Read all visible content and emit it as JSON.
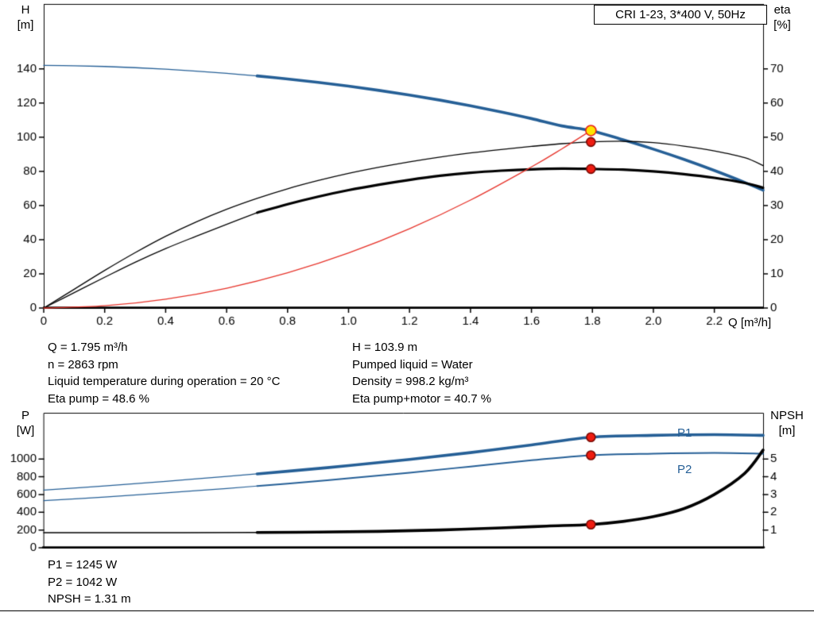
{
  "title_box": "CRI 1-23, 3*400 V, 50Hz",
  "labels": {
    "h_axis": [
      "H",
      "[m]"
    ],
    "eta_axis": [
      "eta",
      "[%]"
    ],
    "q_axis": "Q [m³/h]",
    "p_axis": [
      "P",
      "[W]"
    ],
    "npsh_axis": [
      "NPSH",
      "[m]"
    ],
    "p1_curve": "P1",
    "p2_curve": "P2"
  },
  "info": {
    "top_left": [
      "Q = 1.795 m³/h",
      "n = 2863 rpm",
      "Liquid temperature during operation = 20 °C",
      "Eta pump = 48.6 %"
    ],
    "top_right": [
      "H = 103.9 m",
      "Pumped liquid = Water",
      "Density = 998.2 kg/m³",
      "Eta pump+motor = 40.7 %"
    ],
    "bottom": [
      "P1 = 1245 W",
      "P2 = 1042 W",
      "NPSH = 1.31 m"
    ]
  },
  "colors": {
    "curve_blue": "#255f96",
    "curve_black": "#000000",
    "curve_red": "#e63229",
    "marker_yellow": "#ffe400",
    "marker_red": "#ee1c11",
    "axis": "#000000"
  },
  "chart_data": [
    {
      "type": "line",
      "title": "CRI 1-23, 3*400 V, 50Hz",
      "xlabel": "Q [m³/h]",
      "xlim": [
        0,
        2.36
      ],
      "x_ticks": [
        0,
        0.2,
        0.4,
        0.6,
        0.8,
        1.0,
        1.2,
        1.4,
        1.6,
        1.8,
        2.0,
        2.2
      ],
      "left_axis": {
        "label": "H [m]",
        "lim": [
          0,
          178
        ],
        "ticks": [
          0,
          20,
          40,
          60,
          80,
          100,
          120,
          140
        ]
      },
      "right_axis": {
        "label": "eta [%]",
        "lim": [
          0,
          89
        ],
        "ticks": [
          0,
          10,
          20,
          30,
          40,
          50,
          60,
          70
        ]
      },
      "grid": false,
      "series": [
        {
          "name": "pump-curve-H(Q)",
          "axis": "left",
          "color": "#255f96",
          "segments": [
            [
              0,
              0.7,
              1.3
            ],
            [
              0.7,
              2.36,
              3.6
            ]
          ],
          "points": [
            [
              0,
              142
            ],
            [
              0.1,
              141.8
            ],
            [
              0.2,
              141.4
            ],
            [
              0.3,
              140.7
            ],
            [
              0.4,
              139.8
            ],
            [
              0.5,
              138.7
            ],
            [
              0.6,
              137.4
            ],
            [
              0.7,
              135.9
            ],
            [
              0.8,
              134.1
            ],
            [
              0.9,
              132.1
            ],
            [
              1.0,
              129.9
            ],
            [
              1.1,
              127.4
            ],
            [
              1.2,
              124.7
            ],
            [
              1.3,
              121.7
            ],
            [
              1.4,
              118.4
            ],
            [
              1.5,
              114.8
            ],
            [
              1.6,
              110.9
            ],
            [
              1.7,
              106.6
            ],
            [
              1.795,
              103.9
            ],
            [
              1.9,
              98.5
            ],
            [
              2.0,
              93
            ],
            [
              2.1,
              87
            ],
            [
              2.2,
              80.5
            ],
            [
              2.3,
              73.5
            ],
            [
              2.36,
              69
            ]
          ]
        },
        {
          "name": "eta-pump",
          "axis": "right",
          "color": "#000000",
          "segments": [
            [
              0,
              2.36,
              1.3
            ]
          ],
          "points": [
            [
              0,
              0
            ],
            [
              0.1,
              5.5
            ],
            [
              0.2,
              11
            ],
            [
              0.3,
              16.2
            ],
            [
              0.4,
              21
            ],
            [
              0.5,
              25.2
            ],
            [
              0.6,
              28.9
            ],
            [
              0.7,
              32.1
            ],
            [
              0.8,
              34.9
            ],
            [
              0.9,
              37.3
            ],
            [
              1.0,
              39.4
            ],
            [
              1.1,
              41.2
            ],
            [
              1.2,
              42.8
            ],
            [
              1.3,
              44.2
            ],
            [
              1.4,
              45.4
            ],
            [
              1.5,
              46.4
            ],
            [
              1.6,
              47.3
            ],
            [
              1.7,
              48.1
            ],
            [
              1.795,
              48.6
            ],
            [
              1.9,
              48.8
            ],
            [
              2.0,
              48.4
            ],
            [
              2.1,
              47.4
            ],
            [
              2.2,
              46.0
            ],
            [
              2.3,
              44.0
            ],
            [
              2.36,
              41.7
            ]
          ]
        },
        {
          "name": "eta-pump-plus-motor",
          "axis": "right",
          "color": "#000000",
          "segments": [
            [
              0,
              0.7,
              1.3
            ],
            [
              0.7,
              2.36,
              3.2
            ]
          ],
          "points": [
            [
              0,
              0
            ],
            [
              0.1,
              4.5
            ],
            [
              0.2,
              9
            ],
            [
              0.3,
              13.4
            ],
            [
              0.4,
              17.4
            ],
            [
              0.5,
              21
            ],
            [
              0.6,
              24.5
            ],
            [
              0.7,
              27.9
            ],
            [
              0.8,
              30.4
            ],
            [
              0.9,
              32.6
            ],
            [
              1.0,
              34.5
            ],
            [
              1.1,
              36.1
            ],
            [
              1.2,
              37.5
            ],
            [
              1.3,
              38.7
            ],
            [
              1.4,
              39.6
            ],
            [
              1.5,
              40.2
            ],
            [
              1.6,
              40.6
            ],
            [
              1.7,
              40.8
            ],
            [
              1.795,
              40.7
            ],
            [
              1.9,
              40.5
            ],
            [
              2.0,
              40.0
            ],
            [
              2.1,
              39.2
            ],
            [
              2.2,
              38.1
            ],
            [
              2.3,
              36.6
            ],
            [
              2.36,
              35.2
            ]
          ]
        },
        {
          "name": "system-curve",
          "axis": "left",
          "color": "#e63229",
          "segments": [
            [
              0,
              1.795,
              1.3
            ]
          ],
          "points": [
            [
              0,
              0
            ],
            [
              0.2,
              1.3
            ],
            [
              0.4,
              5.2
            ],
            [
              0.6,
              11.6
            ],
            [
              0.8,
              20.6
            ],
            [
              1.0,
              32.2
            ],
            [
              1.2,
              46.4
            ],
            [
              1.4,
              63.2
            ],
            [
              1.6,
              82.6
            ],
            [
              1.7,
              93.2
            ],
            [
              1.795,
              103.9
            ]
          ]
        }
      ],
      "markers": [
        {
          "name": "duty-point",
          "q": 1.795,
          "v": 103.9,
          "axis": "left",
          "fill": "#ffe400",
          "stroke": "#e62019",
          "r": 6.5
        },
        {
          "name": "eta-pump-point",
          "q": 1.795,
          "v": 48.6,
          "axis": "right",
          "fill": "#ee1c11",
          "stroke": "#7a0a04",
          "r": 5.5
        },
        {
          "name": "eta-pump-motor-point",
          "q": 1.795,
          "v": 40.7,
          "axis": "right",
          "fill": "#ee1c11",
          "stroke": "#7a0a04",
          "r": 5.5
        }
      ]
    },
    {
      "type": "line",
      "title": "",
      "xlabel": "",
      "xlim": [
        0,
        2.36
      ],
      "x_ticks": [],
      "left_axis": {
        "label": "P [W]",
        "lim": [
          0,
          1520
        ],
        "ticks": [
          0,
          200,
          400,
          600,
          800,
          1000
        ]
      },
      "right_axis": {
        "label": "NPSH [m]",
        "lim": [
          0,
          7.6
        ],
        "ticks": [
          1,
          2,
          3,
          4,
          5
        ]
      },
      "grid": false,
      "series": [
        {
          "name": "P1",
          "axis": "left",
          "color": "#255f96",
          "segments": [
            [
              0,
              0.7,
              1.3
            ],
            [
              0.7,
              2.36,
              3.6
            ]
          ],
          "points": [
            [
              0,
              650
            ],
            [
              0.2,
              697
            ],
            [
              0.4,
              748
            ],
            [
              0.6,
              803
            ],
            [
              0.7,
              832
            ],
            [
              0.8,
              862
            ],
            [
              1.0,
              925
            ],
            [
              1.2,
              995
            ],
            [
              1.4,
              1072
            ],
            [
              1.6,
              1158
            ],
            [
              1.795,
              1245
            ],
            [
              2.0,
              1266
            ],
            [
              2.2,
              1274
            ],
            [
              2.36,
              1266
            ]
          ]
        },
        {
          "name": "P2",
          "axis": "left",
          "color": "#255f96",
          "segments": [
            [
              0,
              0.7,
              1.2
            ],
            [
              0.7,
              2.36,
              2.0
            ]
          ],
          "points": [
            [
              0,
              530
            ],
            [
              0.2,
              572
            ],
            [
              0.4,
              618
            ],
            [
              0.6,
              668
            ],
            [
              0.7,
              695
            ],
            [
              0.8,
              723
            ],
            [
              1.0,
              782
            ],
            [
              1.2,
              846
            ],
            [
              1.4,
              915
            ],
            [
              1.6,
              985
            ],
            [
              1.795,
              1042
            ],
            [
              2.0,
              1060
            ],
            [
              2.2,
              1068
            ],
            [
              2.36,
              1060
            ]
          ]
        },
        {
          "name": "NPSH",
          "axis": "right",
          "color": "#000000",
          "segments": [
            [
              0,
              0.7,
              1.6
            ],
            [
              0.7,
              2.36,
              3.6
            ]
          ],
          "points": [
            [
              0,
              0.85
            ],
            [
              0.4,
              0.85
            ],
            [
              0.7,
              0.86
            ],
            [
              0.9,
              0.88
            ],
            [
              1.1,
              0.92
            ],
            [
              1.3,
              1.0
            ],
            [
              1.5,
              1.12
            ],
            [
              1.65,
              1.22
            ],
            [
              1.795,
              1.31
            ],
            [
              1.9,
              1.48
            ],
            [
              2.0,
              1.75
            ],
            [
              2.1,
              2.2
            ],
            [
              2.2,
              3.0
            ],
            [
              2.3,
              4.2
            ],
            [
              2.36,
              5.5
            ]
          ]
        }
      ],
      "markers": [
        {
          "name": "p1-point",
          "q": 1.795,
          "v": 1245,
          "axis": "left",
          "fill": "#ee1c11",
          "stroke": "#7a0a04",
          "r": 5.5
        },
        {
          "name": "p2-point",
          "q": 1.795,
          "v": 1042,
          "axis": "left",
          "fill": "#ee1c11",
          "stroke": "#7a0a04",
          "r": 5.5
        },
        {
          "name": "npsh-point",
          "q": 1.795,
          "v": 1.31,
          "axis": "right",
          "fill": "#ee1c11",
          "stroke": "#7a0a04",
          "r": 5.5
        }
      ]
    }
  ]
}
